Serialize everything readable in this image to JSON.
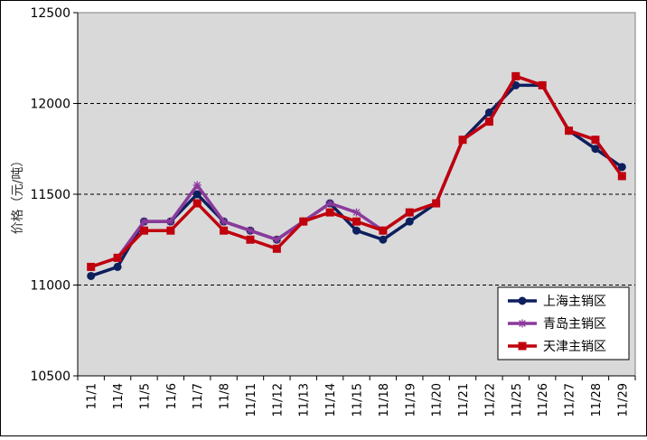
{
  "chart_data": {
    "type": "line",
    "title": "",
    "xlabel": "",
    "ylabel": "价格（元/吨）",
    "ylim": [
      10500,
      12500
    ],
    "yticks": [
      10500,
      11000,
      11500,
      12000,
      12500
    ],
    "grid": "horizontal dashed",
    "legend_position": "bottom-right",
    "categories": [
      "11/1",
      "11/4",
      "11/5",
      "11/6",
      "11/7",
      "11/8",
      "11/11",
      "11/12",
      "11/13",
      "11/14",
      "11/15",
      "11/18",
      "11/19",
      "11/20",
      "11/21",
      "11/22",
      "11/25",
      "11/26",
      "11/27",
      "11/28",
      "11/29"
    ],
    "series": [
      {
        "name": "上海主销区",
        "color": "#0d1f5c",
        "marker": "circle",
        "values": [
          11050,
          11100,
          11350,
          11350,
          11500,
          11350,
          11300,
          11250,
          11350,
          11450,
          11300,
          11250,
          11350,
          11450,
          11800,
          11950,
          12100,
          12100,
          11850,
          11750,
          11650
        ]
      },
      {
        "name": "青岛主销区",
        "color": "#8b3a9c",
        "marker": "star",
        "values": [
          11100,
          11150,
          11350,
          11350,
          11550,
          11350,
          11300,
          11250,
          11350,
          11450,
          11400,
          11300,
          11400,
          11450,
          11800,
          11900,
          12150,
          12100,
          11850,
          11800,
          11600
        ]
      },
      {
        "name": "天津主销区",
        "color": "#c0000c",
        "marker": "square",
        "values": [
          11100,
          11150,
          11300,
          11300,
          11450,
          11300,
          11250,
          11200,
          11350,
          11400,
          11350,
          11300,
          11400,
          11450,
          11800,
          11900,
          12150,
          12100,
          11850,
          11800,
          11600
        ]
      }
    ]
  }
}
